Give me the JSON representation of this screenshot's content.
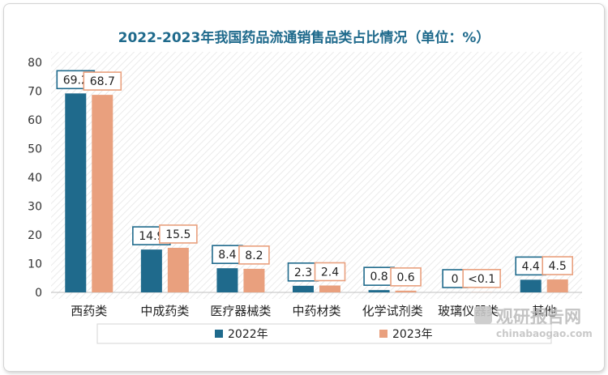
{
  "chart_data": {
    "type": "bar",
    "title": "2022-2023年我国药品流通销售品类占比情况（单位：%）",
    "xlabel": "",
    "ylabel": "",
    "ylim": [
      0,
      80
    ],
    "yticks": [
      "0",
      "10",
      "20",
      "30",
      "40",
      "50",
      "60",
      "70",
      "80"
    ],
    "categories": [
      "西药类",
      "中成药类",
      "医疗器械类",
      "中药材类",
      "化学试剂类",
      "玻璃仪器类",
      "其他"
    ],
    "series": [
      {
        "name": "2022年",
        "color": "#1f6a8c",
        "values": [
          69.2,
          14.9,
          8.4,
          2.3,
          0.8,
          0,
          4.4
        ],
        "labels": [
          "69.2",
          "14.9",
          "8.4",
          "2.3",
          "0.8",
          "0",
          "4.4"
        ]
      },
      {
        "name": "2023年",
        "color": "#e9a07e",
        "values": [
          68.7,
          15.5,
          8.2,
          2.4,
          0.6,
          0.05,
          4.5
        ],
        "labels": [
          "68.7",
          "15.5",
          "8.2",
          "2.4",
          "0.6",
          "<0.1",
          "4.5"
        ]
      }
    ],
    "grid": false,
    "legend": "bottom",
    "title_color": "#1f6a8c"
  },
  "watermark": {
    "brand": "观研报告网",
    "url": "chinabaogao.com"
  }
}
